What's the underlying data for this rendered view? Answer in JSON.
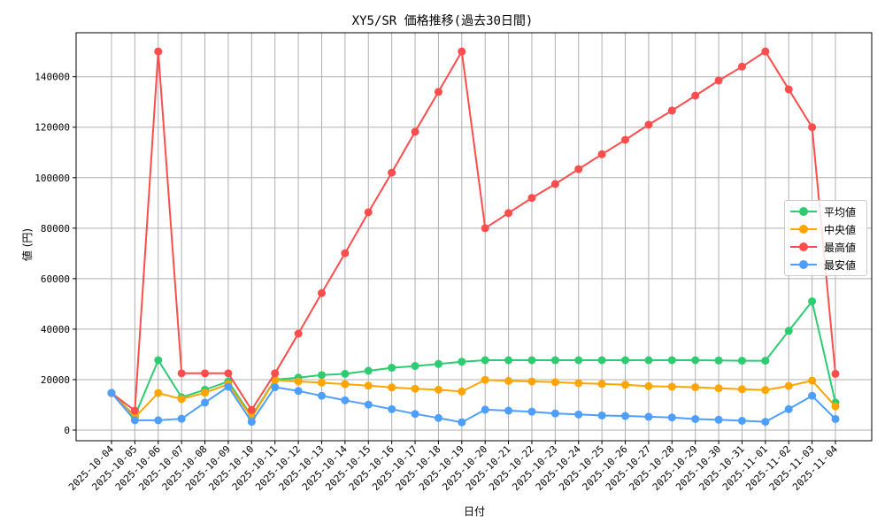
{
  "chart_data": {
    "type": "line",
    "title": "XY5/SR 価格推移(過去30日間)",
    "xlabel": "日付",
    "ylabel": "値 (円)",
    "ylim": [
      -4000,
      157000
    ],
    "yticks": [
      0,
      20000,
      40000,
      60000,
      80000,
      100000,
      120000,
      140000
    ],
    "grid": true,
    "legend_position": "center right",
    "categories": [
      "2025-10-04",
      "2025-10-05",
      "2025-10-06",
      "2025-10-07",
      "2025-10-08",
      "2025-10-09",
      "2025-10-10",
      "2025-10-11",
      "2025-10-12",
      "2025-10-13",
      "2025-10-14",
      "2025-10-15",
      "2025-10-16",
      "2025-10-17",
      "2025-10-18",
      "2025-10-19",
      "2025-10-20",
      "2025-10-21",
      "2025-10-22",
      "2025-10-23",
      "2025-10-24",
      "2025-10-25",
      "2025-10-26",
      "2025-10-27",
      "2025-10-28",
      "2025-10-29",
      "2025-10-30",
      "2025-10-31",
      "2025-11-01",
      "2025-11-02",
      "2025-11-03",
      "2025-11-04"
    ],
    "series": [
      {
        "name": "平均値",
        "color": "#2ecc71",
        "values": [
          14700,
          5600,
          27700,
          13000,
          16000,
          19300,
          5500,
          20000,
          20800,
          21800,
          22300,
          23500,
          24700,
          25400,
          26200,
          27100,
          27700,
          27700,
          27700,
          27700,
          27700,
          27700,
          27700,
          27700,
          27700,
          27700,
          27600,
          27500,
          27500,
          39300,
          51000,
          10900
        ]
      },
      {
        "name": "中央値",
        "color": "#ffa500",
        "values": [
          14700,
          5000,
          14700,
          12300,
          14800,
          18200,
          5000,
          19800,
          19300,
          18800,
          18200,
          17600,
          16900,
          16400,
          16000,
          15300,
          19900,
          19500,
          19300,
          19000,
          18600,
          18300,
          18000,
          17400,
          17200,
          17000,
          16600,
          16200,
          15900,
          17500,
          19600,
          9400
        ]
      },
      {
        "name": "最高値",
        "color": "#ff4d4d",
        "values": [
          14700,
          7700,
          150000,
          22500,
          22500,
          22500,
          8000,
          22500,
          38200,
          54300,
          70100,
          86300,
          102000,
          118200,
          134000,
          150000,
          80000,
          86000,
          92000,
          97500,
          103400,
          109300,
          115000,
          121000,
          126600,
          132500,
          138500,
          144000,
          150000,
          135000,
          120000,
          22300
        ]
      },
      {
        "name": "最安値",
        "color": "#4d9fff",
        "values": [
          14700,
          3900,
          3900,
          4500,
          10900,
          17200,
          3300,
          17000,
          15500,
          13600,
          11800,
          10100,
          8300,
          6400,
          4800,
          3100,
          8100,
          7700,
          7300,
          6600,
          6200,
          5800,
          5600,
          5300,
          5000,
          4400,
          4100,
          3700,
          3300,
          8300,
          13600,
          4400
        ]
      }
    ]
  }
}
